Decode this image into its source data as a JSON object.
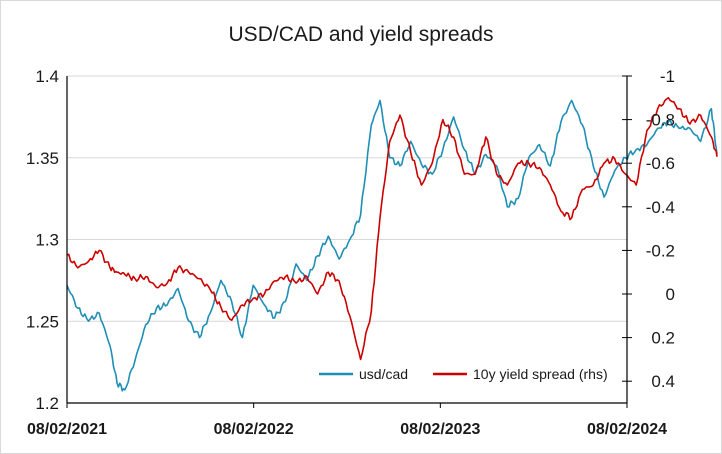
{
  "chart_data": {
    "type": "line",
    "title": "USD/CAD and yield spreads",
    "xlabel": "",
    "ylabel": "",
    "x_ticks": [
      "08/02/2021",
      "08/02/2022",
      "08/02/2023",
      "08/02/2024"
    ],
    "ylim": [
      1.2,
      1.4
    ],
    "y_ticks": [
      "1.2",
      "1.25",
      "1.3",
      "1.35",
      "1.4"
    ],
    "y2lim": [
      -1.0,
      0.5
    ],
    "y2_inverted": true,
    "y2_ticks": [
      "-1",
      "-0.8",
      "-0.6",
      "-0.4",
      "-0.2",
      "0",
      "0.2",
      "0.4"
    ],
    "grid": "horizontal",
    "legend": "bottom-right",
    "colors": {
      "usd_cad": "#1f8fb5",
      "spread": "#cc0000",
      "grid": "#d9d9d9",
      "axis": "#000000"
    },
    "series": [
      {
        "name": "usd/cad",
        "axis": "left",
        "x": [
          "2021-02-08",
          "2021-03-01",
          "2021-03-22",
          "2021-04-12",
          "2021-05-03",
          "2021-05-17",
          "2021-06-01",
          "2021-06-21",
          "2021-07-12",
          "2021-08-02",
          "2021-08-23",
          "2021-09-13",
          "2021-10-04",
          "2021-10-25",
          "2021-11-15",
          "2021-12-06",
          "2021-12-27",
          "2022-01-17",
          "2022-02-07",
          "2022-03-01",
          "2022-03-21",
          "2022-04-11",
          "2022-05-02",
          "2022-05-23",
          "2022-06-13",
          "2022-07-04",
          "2022-07-25",
          "2022-08-15",
          "2022-09-05",
          "2022-09-26",
          "2022-10-13",
          "2022-11-01",
          "2022-11-21",
          "2022-12-12",
          "2023-01-02",
          "2023-01-23",
          "2023-02-13",
          "2023-03-06",
          "2023-03-27",
          "2023-04-17",
          "2023-05-08",
          "2023-05-29",
          "2023-06-19",
          "2023-07-10",
          "2023-07-31",
          "2023-08-21",
          "2023-09-11",
          "2023-10-02",
          "2023-10-23",
          "2023-11-13",
          "2023-12-04",
          "2023-12-25",
          "2024-01-15",
          "2024-02-05",
          "2024-02-26",
          "2024-03-18",
          "2024-04-08",
          "2024-04-29",
          "2024-05-20",
          "2024-06-10",
          "2024-07-01",
          "2024-07-22",
          "2024-08-02"
        ],
        "values": [
          1.272,
          1.258,
          1.25,
          1.255,
          1.235,
          1.212,
          1.208,
          1.226,
          1.248,
          1.258,
          1.26,
          1.27,
          1.25,
          1.24,
          1.255,
          1.275,
          1.262,
          1.24,
          1.272,
          1.26,
          1.252,
          1.262,
          1.285,
          1.275,
          1.29,
          1.302,
          1.288,
          1.3,
          1.315,
          1.37,
          1.385,
          1.35,
          1.345,
          1.36,
          1.346,
          1.34,
          1.355,
          1.375,
          1.355,
          1.34,
          1.352,
          1.345,
          1.32,
          1.325,
          1.35,
          1.358,
          1.345,
          1.372,
          1.385,
          1.37,
          1.345,
          1.326,
          1.342,
          1.35,
          1.355,
          1.358,
          1.368,
          1.372,
          1.368,
          1.368,
          1.36,
          1.38,
          1.352
        ]
      },
      {
        "name": "10y yield spread (rhs)",
        "axis": "right",
        "x": [
          "2021-02-08",
          "2021-03-01",
          "2021-03-22",
          "2021-04-12",
          "2021-05-03",
          "2021-05-17",
          "2021-06-01",
          "2021-06-21",
          "2021-07-12",
          "2021-08-02",
          "2021-08-23",
          "2021-09-13",
          "2021-10-04",
          "2021-10-25",
          "2021-11-15",
          "2021-12-06",
          "2021-12-27",
          "2022-01-17",
          "2022-02-07",
          "2022-03-01",
          "2022-03-21",
          "2022-04-11",
          "2022-05-02",
          "2022-05-23",
          "2022-06-13",
          "2022-07-04",
          "2022-07-25",
          "2022-08-15",
          "2022-09-05",
          "2022-09-26",
          "2022-10-13",
          "2022-11-01",
          "2022-11-21",
          "2022-12-12",
          "2023-01-02",
          "2023-01-23",
          "2023-02-13",
          "2023-03-06",
          "2023-03-27",
          "2023-04-17",
          "2023-05-08",
          "2023-05-29",
          "2023-06-19",
          "2023-07-10",
          "2023-07-31",
          "2023-08-21",
          "2023-09-11",
          "2023-10-02",
          "2023-10-23",
          "2023-11-13",
          "2023-12-04",
          "2023-12-25",
          "2024-01-15",
          "2024-02-05",
          "2024-02-26",
          "2024-03-18",
          "2024-04-08",
          "2024-04-29",
          "2024-05-20",
          "2024-06-10",
          "2024-07-01",
          "2024-07-22",
          "2024-08-02"
        ],
        "values": [
          -0.18,
          -0.12,
          -0.15,
          -0.2,
          -0.12,
          -0.1,
          -0.09,
          -0.07,
          -0.08,
          -0.03,
          -0.05,
          -0.12,
          -0.1,
          -0.07,
          -0.02,
          0.06,
          0.12,
          0.05,
          0.02,
          0.0,
          -0.06,
          -0.08,
          -0.05,
          -0.08,
          0.0,
          -0.1,
          -0.06,
          0.1,
          0.3,
          0.08,
          -0.35,
          -0.7,
          -0.82,
          -0.65,
          -0.5,
          -0.6,
          -0.8,
          -0.72,
          -0.55,
          -0.55,
          -0.72,
          -0.55,
          -0.5,
          -0.6,
          -0.6,
          -0.58,
          -0.5,
          -0.38,
          -0.35,
          -0.48,
          -0.5,
          -0.6,
          -0.62,
          -0.55,
          -0.5,
          -0.75,
          -0.85,
          -0.9,
          -0.85,
          -0.78,
          -0.82,
          -0.72,
          -0.63
        ]
      }
    ]
  }
}
